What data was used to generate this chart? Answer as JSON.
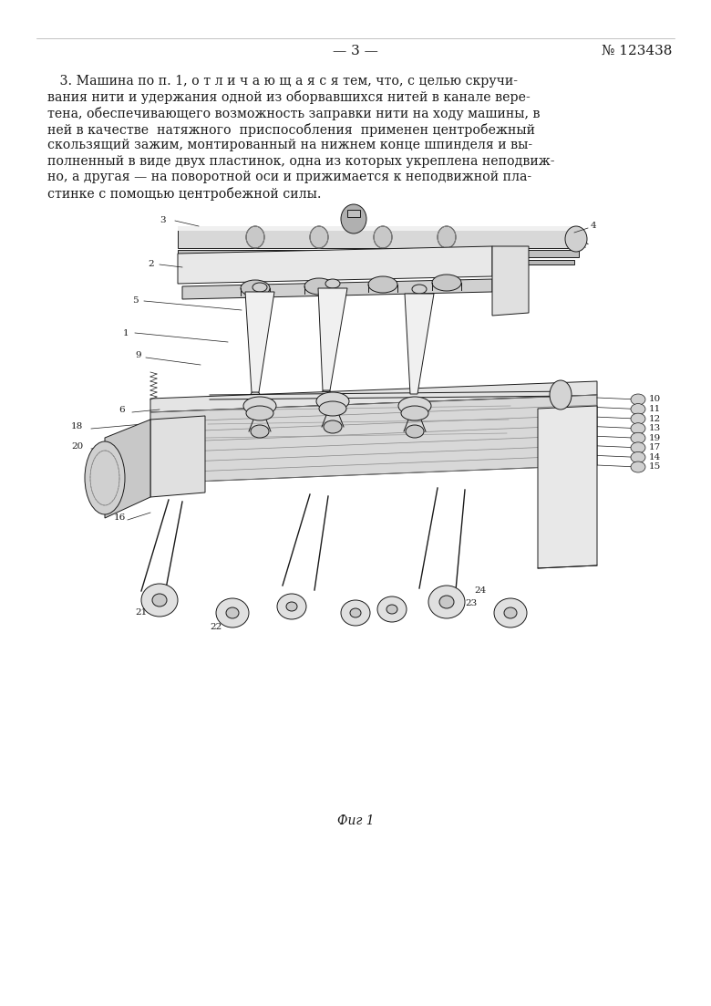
{
  "page_width": 7.8,
  "page_height": 11.03,
  "background_color": "#ffffff",
  "header_page_num": "— 3 —",
  "header_patent_num": "№ 123438",
  "text_color": "#1a1a1a",
  "text_fontsize": 10.2,
  "header_fontsize": 11,
  "fig_caption": "Фиг 1",
  "body_lines": [
    "   3. Машина по п. 1, о т л и ч а ю щ а я с я тем, что, с целью скручи-",
    "вания нити и удержания одной из оборвавшихся нитей в канале вере-",
    "тена, обеспечивающего возможность заправки нити на ходу машины, в",
    "ней в качестве  натяжного  приспособления  применен центробежный",
    "скользящий зажим, монтированный на нижнем конце шпинделя и вы-",
    "полненный в виде двух пластинок, одна из которых укреплена неподвиж-",
    "но, а другая — на поворотной оси и прижимается к неподвижной пла-",
    "стинке с помощью центробежной силы."
  ]
}
